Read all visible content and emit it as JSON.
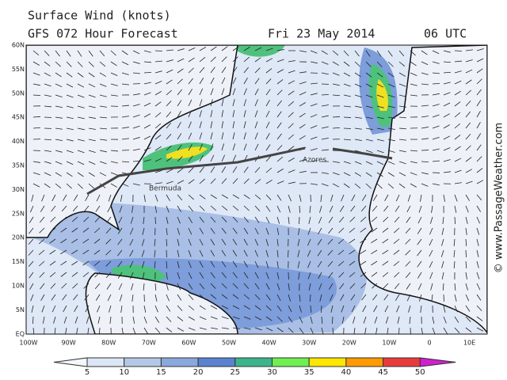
{
  "header": {
    "title": "Surface Wind (knots)",
    "subtitle": "GFS 072 Hour Forecast",
    "date": "Fri 23 May 2014",
    "time": "06 UTC"
  },
  "map": {
    "lat_labels": [
      "60N",
      "55N",
      "50N",
      "45N",
      "40N",
      "35N",
      "30N",
      "25N",
      "20N",
      "15N",
      "10N",
      "5N",
      "EQ"
    ],
    "lon_labels": [
      "100W",
      "90W",
      "80W",
      "70W",
      "60W",
      "50W",
      "40W",
      "30W",
      "20W",
      "10W",
      "0",
      "10E"
    ],
    "places": [
      "Azores",
      "Bermuda"
    ],
    "credit": "© www.PassageWeather.com"
  },
  "legend": {
    "labels": [
      5,
      10,
      15,
      20,
      25,
      30,
      35,
      40,
      45,
      50
    ]
  }
}
